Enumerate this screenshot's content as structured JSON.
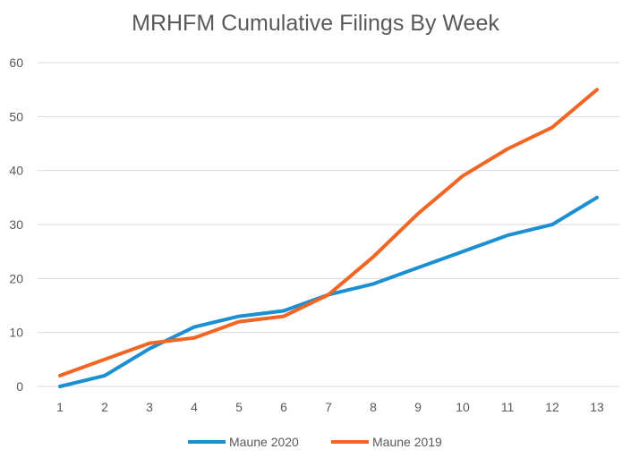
{
  "chart_data": {
    "type": "line",
    "title": "MRHFM Cumulative Filings By Week",
    "xlabel": "",
    "ylabel": "",
    "categories": [
      "1",
      "2",
      "3",
      "4",
      "5",
      "6",
      "7",
      "8",
      "9",
      "10",
      "11",
      "12",
      "13"
    ],
    "ylim": [
      0,
      60
    ],
    "yticks": [
      0,
      10,
      20,
      30,
      40,
      50,
      60
    ],
    "grid": true,
    "legend_position": "bottom",
    "series": [
      {
        "name": "Maune 2020",
        "color": "#1b8fd2",
        "values": [
          0,
          2,
          7,
          11,
          13,
          14,
          17,
          19,
          22,
          25,
          28,
          30,
          35
        ]
      },
      {
        "name": "Maune 2019",
        "color": "#f26522",
        "values": [
          2,
          5,
          8,
          9,
          12,
          13,
          17,
          24,
          32,
          39,
          44,
          48,
          55
        ]
      }
    ]
  }
}
